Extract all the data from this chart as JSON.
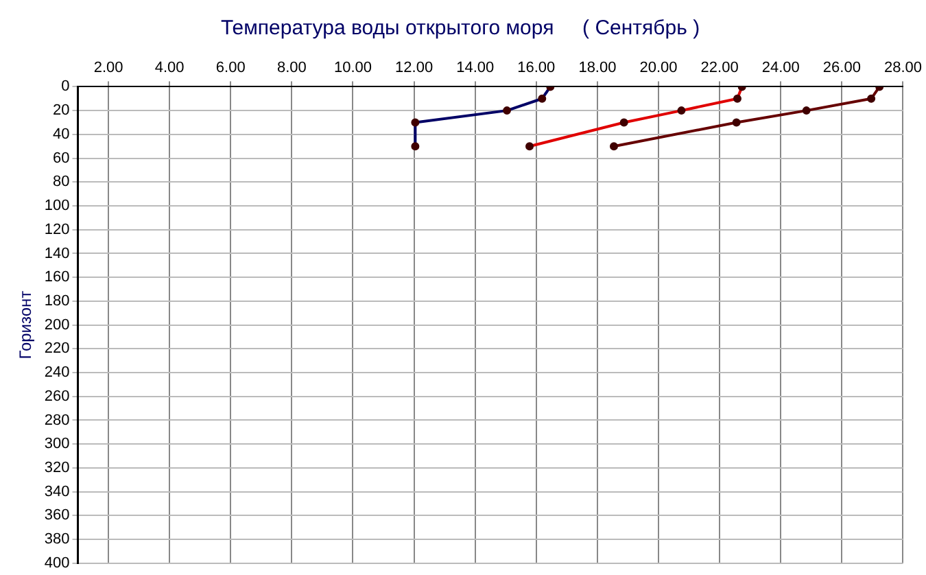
{
  "chart_data": {
    "type": "line",
    "title": "Температура воды открытого моря     ( Сентябрь )",
    "ylabel": "Горизонт",
    "series": [
      {
        "color": "#000066",
        "x": [
          16.46,
          16.19,
          15.04,
          12.04,
          12.04
        ],
        "values": [
          0,
          10,
          20,
          30,
          50
        ]
      },
      {
        "color": "#e00000",
        "x": [
          22.73,
          22.58,
          20.75,
          18.87,
          15.78
        ],
        "values": [
          0,
          10,
          20,
          30,
          50
        ]
      },
      {
        "color": "#660000",
        "x": [
          27.23,
          26.96,
          24.84,
          22.55,
          18.54
        ],
        "values": [
          0,
          10,
          20,
          30,
          50
        ]
      }
    ],
    "xlim": [
      1,
      28
    ],
    "xticks": [
      {
        "value": 2,
        "label": "2.00"
      },
      {
        "value": 4,
        "label": "4.00"
      },
      {
        "value": 6,
        "label": "6.00"
      },
      {
        "value": 8,
        "label": "8.00"
      },
      {
        "value": 10,
        "label": "10.00"
      },
      {
        "value": 12,
        "label": "12.00"
      },
      {
        "value": 14,
        "label": "14.00"
      },
      {
        "value": 16,
        "label": "16.00"
      },
      {
        "value": 18,
        "label": "18.00"
      },
      {
        "value": 20,
        "label": "20.00"
      },
      {
        "value": 22,
        "label": "22.00"
      },
      {
        "value": 24,
        "label": "24.00"
      },
      {
        "value": 26,
        "label": "26.00"
      },
      {
        "value": 28,
        "label": "28.00"
      }
    ],
    "ylim": [
      400,
      0
    ],
    "yticks": [
      0,
      20,
      40,
      60,
      80,
      100,
      120,
      140,
      160,
      180,
      200,
      220,
      240,
      260,
      280,
      300,
      320,
      340,
      360,
      380,
      400
    ],
    "grid": true,
    "legend": false,
    "marker": "circle",
    "line_style": "solid"
  }
}
